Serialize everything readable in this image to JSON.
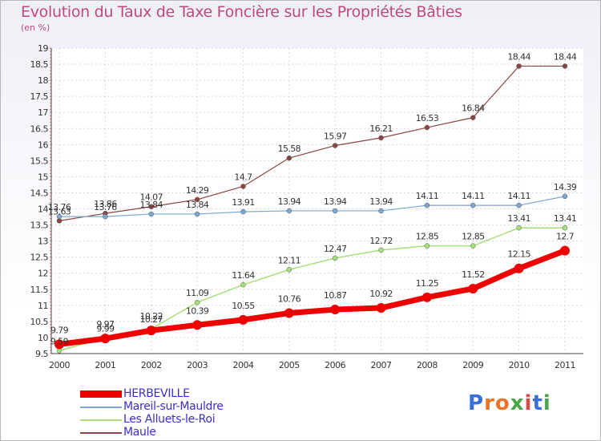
{
  "title": "Evolution du Taux de Taxe Foncière sur les Propriétés Bâties",
  "unit": "(en %)",
  "logo": "Proxiti",
  "colors": {
    "HERBEVILLE": "#ee0000",
    "Mareil-sur-Mauldre": "#7ba7d0",
    "Les Alluets-le-Roi": "#a6e07a",
    "Maule": "#8b4545"
  },
  "chart_data": {
    "type": "line",
    "title": "Evolution du Taux de Taxe Foncière sur les Propriétés Bâties",
    "ylabel": "(en %)",
    "xlabel": "",
    "x": [
      "2000",
      "2001",
      "2002",
      "2003",
      "2004",
      "2005",
      "2006",
      "2007",
      "2008",
      "2009",
      "2010",
      "2011"
    ],
    "ylim": [
      9.5,
      19
    ],
    "yticks": [
      "9.5",
      "10",
      "10.5",
      "11",
      "11.5",
      "12",
      "12.5",
      "13",
      "13.5",
      "14",
      "14.5",
      "15",
      "15.5",
      "16",
      "16.5",
      "17",
      "17.5",
      "18",
      "18.5",
      "19"
    ],
    "grid": true,
    "legend": "bottom-left",
    "series": [
      {
        "name": "HERBEVILLE",
        "values": [
          9.79,
          9.97,
          10.22,
          10.39,
          10.55,
          10.76,
          10.87,
          10.92,
          11.25,
          11.52,
          12.15,
          12.7
        ],
        "labels": [
          "9.79",
          "9.97",
          "10.22",
          "10.39",
          "10.55",
          "10.76",
          "10.87",
          "10.92",
          "11.25",
          "11.52",
          "12.15",
          "12.7"
        ]
      },
      {
        "name": "Mareil-sur-Mauldre",
        "values": [
          13.76,
          13.76,
          13.84,
          13.84,
          13.91,
          13.94,
          13.94,
          13.94,
          14.11,
          14.11,
          14.11,
          14.39
        ],
        "labels": [
          "13.76",
          "13.76",
          "13.84",
          "13.84",
          "13.91",
          "13.94",
          "13.94",
          "13.94",
          "14.11",
          "14.11",
          "14.11",
          "14.39"
        ]
      },
      {
        "name": "Les Alluets-le-Roi",
        "values": [
          9.59,
          9.99,
          10.27,
          11.09,
          11.64,
          12.11,
          12.47,
          12.72,
          12.85,
          12.85,
          13.41,
          13.41
        ],
        "labels": [
          "9.59",
          "9.99",
          "10.27",
          "11.09",
          "11.64",
          "12.11",
          "12.47",
          "12.72",
          "12.85",
          "12.85",
          "13.41",
          "13.41"
        ]
      },
      {
        "name": "Maule",
        "values": [
          13.63,
          13.86,
          14.07,
          14.29,
          14.7,
          15.58,
          15.97,
          16.21,
          16.53,
          16.84,
          18.44,
          18.44
        ],
        "labels": [
          "13.63",
          "13.86",
          "14.07",
          "14.29",
          "14.7",
          "15.58",
          "15.97",
          "16.21",
          "16.53",
          "16.84",
          "18.44",
          "18.44"
        ]
      }
    ]
  }
}
